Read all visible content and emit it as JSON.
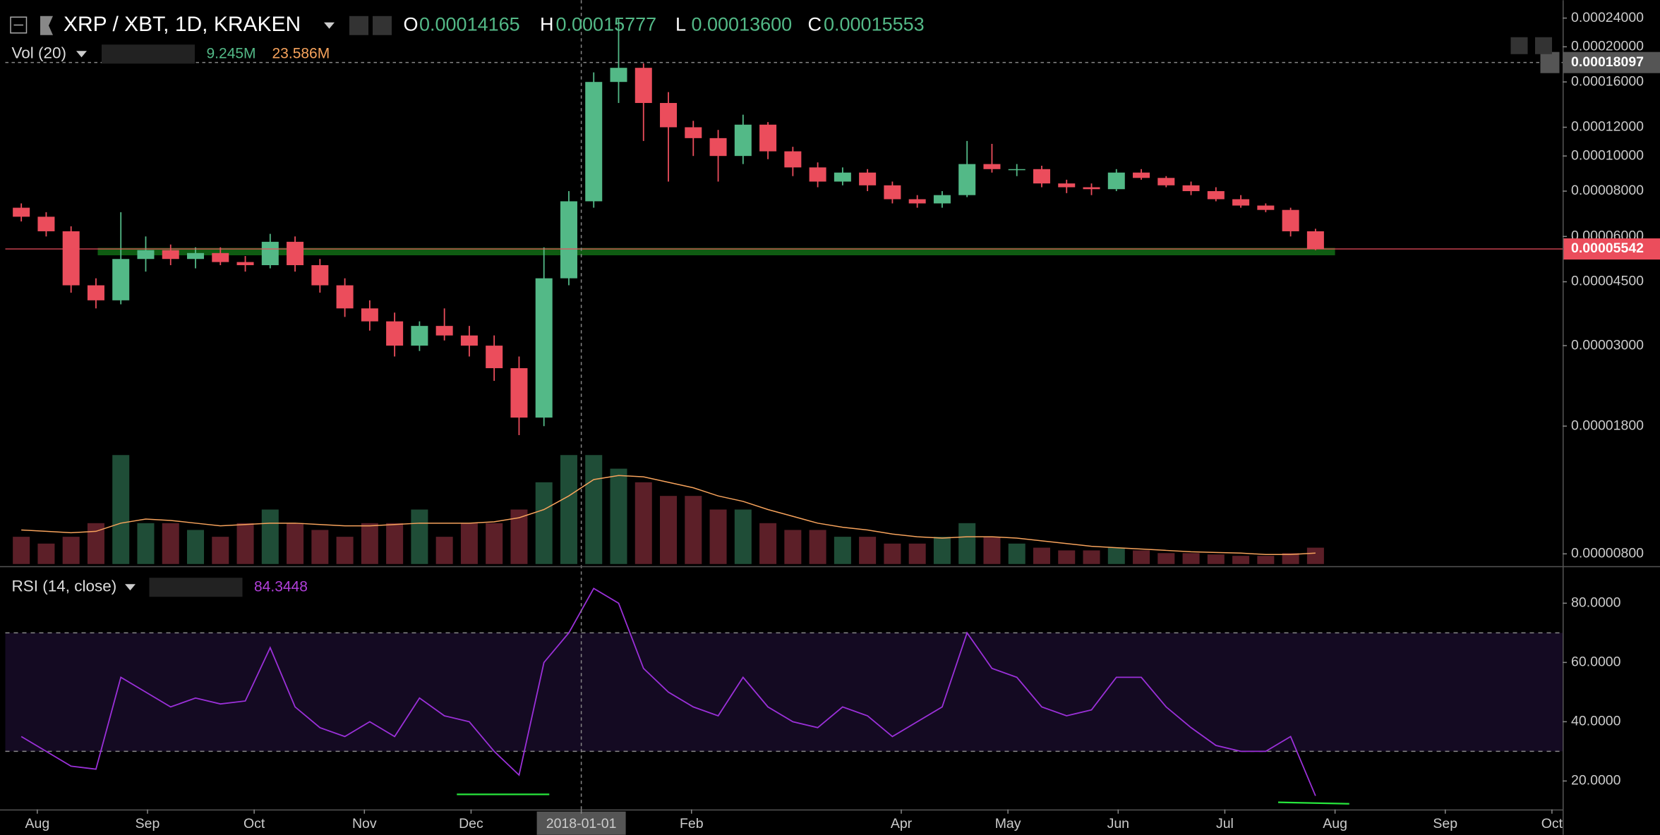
{
  "chart_data": [
    {
      "type": "candlestick",
      "title": "XRP / XBT, 1D, KRAKEN",
      "ohlc_legend": [
        {
          "label": "O",
          "value": "0.00014165"
        },
        {
          "label": "H",
          "value": "0.00015777"
        },
        {
          "label": "L",
          "value": "0.00013600"
        },
        {
          "label": "C",
          "value": "0.00015553"
        }
      ],
      "x": [
        "2017-07-24",
        "2017-07-31",
        "2017-08-07",
        "2017-08-14",
        "2017-08-21",
        "2017-08-28",
        "2017-09-04",
        "2017-09-11",
        "2017-09-18",
        "2017-09-25",
        "2017-10-02",
        "2017-10-09",
        "2017-10-16",
        "2017-10-23",
        "2017-10-30",
        "2017-11-06",
        "2017-11-13",
        "2017-11-20",
        "2017-11-27",
        "2017-12-04",
        "2017-12-11",
        "2017-12-18",
        "2017-12-25",
        "2018-01-01",
        "2018-01-08",
        "2018-01-15",
        "2018-01-22",
        "2018-01-29",
        "2018-02-05",
        "2018-02-12",
        "2018-02-19",
        "2018-02-26",
        "2018-03-05",
        "2018-03-12",
        "2018-03-19",
        "2018-03-26",
        "2018-04-02",
        "2018-04-09",
        "2018-04-16",
        "2018-04-23",
        "2018-04-30",
        "2018-05-07",
        "2018-05-14",
        "2018-05-21",
        "2018-05-28",
        "2018-06-04",
        "2018-06-11",
        "2018-06-18",
        "2018-06-25",
        "2018-07-02",
        "2018-07-09",
        "2018-07-16",
        "2018-07-23"
      ],
      "open": [
        7.2e-05,
        6.8e-05,
        6.2e-05,
        4.4e-05,
        4e-05,
        5.2e-05,
        5.5e-05,
        5.2e-05,
        5.4e-05,
        5.1e-05,
        5e-05,
        5.8e-05,
        5e-05,
        4.4e-05,
        3.8e-05,
        3.5e-05,
        3e-05,
        3.4e-05,
        3.2e-05,
        3e-05,
        2.6e-05,
        1.9e-05,
        4.6e-05,
        7.5e-05,
        0.00016,
        0.000175,
        0.00014,
        0.00012,
        0.000112,
        0.0001,
        0.000122,
        0.000103,
        9.3e-05,
        8.5e-05,
        9e-05,
        8.3e-05,
        7.6e-05,
        7.4e-05,
        7.8e-05,
        9.5e-05,
        9.2e-05,
        9.2e-05,
        8.4e-05,
        8.2e-05,
        8.1e-05,
        9e-05,
        8.7e-05,
        8.3e-05,
        8e-05,
        7.6e-05,
        7.3e-05,
        7.1e-05,
        6.2e-05
      ],
      "high": [
        7.4e-05,
        7e-05,
        6.4e-05,
        4.6e-05,
        7e-05,
        6e-05,
        5.7e-05,
        5.6e-05,
        5.6e-05,
        5.3e-05,
        6.1e-05,
        6e-05,
        5.2e-05,
        4.6e-05,
        4e-05,
        3.7e-05,
        3.5e-05,
        3.8e-05,
        3.4e-05,
        3.2e-05,
        2.8e-05,
        5.6e-05,
        8e-05,
        0.00017,
        0.00024,
        0.00018,
        0.00015,
        0.000125,
        0.000118,
        0.00013,
        0.000124,
        0.000106,
        9.6e-05,
        9.3e-05,
        9.2e-05,
        8.5e-05,
        7.8e-05,
        8e-05,
        0.00011,
        0.000108,
        9.5e-05,
        9.4e-05,
        8.6e-05,
        8.4e-05,
        9.2e-05,
        9.2e-05,
        8.8e-05,
        8.5e-05,
        8.2e-05,
        7.8e-05,
        7.4e-05,
        7.2e-05,
        6.3e-05
      ],
      "low": [
        6.6e-05,
        6e-05,
        4.2e-05,
        3.8e-05,
        3.9e-05,
        4.8e-05,
        5e-05,
        4.9e-05,
        5e-05,
        4.8e-05,
        4.9e-05,
        4.8e-05,
        4.2e-05,
        3.6e-05,
        3.3e-05,
        2.8e-05,
        2.9e-05,
        3.1e-05,
        2.8e-05,
        2.4e-05,
        1.7e-05,
        1.8e-05,
        4.4e-05,
        7.2e-05,
        0.00014,
        0.00011,
        8.5e-05,
        0.0001,
        8.5e-05,
        9.5e-05,
        9.8e-05,
        8.8e-05,
        8.2e-05,
        8.3e-05,
        8e-05,
        7.4e-05,
        7.2e-05,
        7.2e-05,
        7.7e-05,
        9e-05,
        8.8e-05,
        8.2e-05,
        7.9e-05,
        7.8e-05,
        8e-05,
        8.6e-05,
        8.2e-05,
        7.8e-05,
        7.5e-05,
        7.2e-05,
        7e-05,
        6e-05,
        5.5e-05
      ],
      "close": [
        6.8e-05,
        6.2e-05,
        4.4e-05,
        4e-05,
        5.2e-05,
        5.5e-05,
        5.2e-05,
        5.4e-05,
        5.1e-05,
        5e-05,
        5.8e-05,
        5e-05,
        4.4e-05,
        3.8e-05,
        3.5e-05,
        3e-05,
        3.4e-05,
        3.2e-05,
        3e-05,
        2.6e-05,
        1.9e-05,
        4.6e-05,
        7.5e-05,
        0.00016,
        0.000175,
        0.00014,
        0.00012,
        0.000112,
        0.0001,
        0.000122,
        0.000103,
        9.3e-05,
        8.5e-05,
        9e-05,
        8.3e-05,
        7.6e-05,
        7.4e-05,
        7.8e-05,
        9.5e-05,
        9.2e-05,
        9.2e-05,
        8.4e-05,
        8.2e-05,
        8.1e-05,
        9e-05,
        8.7e-05,
        8.3e-05,
        8e-05,
        7.6e-05,
        7.3e-05,
        7.1e-05,
        6.2e-05,
        5.542e-05
      ],
      "up_color": "#53b987",
      "down_color": "#eb4d5c",
      "xlim": [
        "2017-07-23",
        "2018-10-04"
      ],
      "xticks": [
        {
          "value": "2017-08-01",
          "label": "Aug"
        },
        {
          "value": "2017-09-01",
          "label": "Sep"
        },
        {
          "value": "2017-10-01",
          "label": "Oct"
        },
        {
          "value": "2017-11-01",
          "label": "Nov"
        },
        {
          "value": "2017-12-01",
          "label": "Dec"
        },
        "2018-01-01",
        {
          "value": "2018-02-01",
          "label": "Feb"
        },
        {
          "value": "2018-04-01",
          "label": "Apr"
        },
        {
          "value": "2018-05-01",
          "label": "May"
        },
        {
          "value": "2018-06-01",
          "label": "Jun"
        },
        {
          "value": "2018-07-01",
          "label": "Jul"
        },
        {
          "value": "2018-08-01",
          "label": "Aug"
        },
        {
          "value": "2018-09-01",
          "label": "Sep"
        },
        {
          "value": "2018-10-01",
          "label": "Oct"
        }
      ],
      "ylim": [
        7.5e-06,
        0.00026
      ],
      "log_scale": true,
      "yticks": [
        {
          "value": 0.00024,
          "label": "0.00024000"
        },
        {
          "value": 0.0002,
          "label": "0.00020000"
        },
        {
          "value": 0.00016,
          "label": "0.00016000"
        },
        {
          "value": 0.00012,
          "label": "0.00012000"
        },
        {
          "value": 0.0001,
          "label": "0.00010000"
        },
        {
          "value": 8e-05,
          "label": "0.00008000"
        },
        {
          "value": 6e-05,
          "label": "0.00006000"
        },
        {
          "value": 4.5e-05,
          "label": "0.00004500"
        },
        {
          "value": 3e-05,
          "label": "0.00003000"
        },
        {
          "value": 1.8e-05,
          "label": "0.00001800"
        },
        {
          "value": 8e-06,
          "label": "0.00000800"
        }
      ],
      "last_price": 5.542e-05,
      "last_price_color": "#eb4d5c",
      "crosshair": {
        "x": "2018-01-01",
        "y": 0.00018097
      },
      "support_line": {
        "x": [
          "2017-08-18",
          "2018-08-01"
        ],
        "y": 5.45e-05,
        "color": "#0f5c12"
      }
    },
    {
      "type": "bar",
      "title": "Vol (20)",
      "legend_values": [
        "9.245M",
        "23.586M"
      ],
      "values": [
        2,
        1.5,
        2,
        3,
        8,
        3,
        3,
        2.5,
        2,
        3,
        4,
        3,
        2.5,
        2,
        3,
        3,
        4,
        2,
        3,
        3,
        4,
        6,
        8,
        8,
        7,
        6,
        5,
        5,
        4,
        4,
        3,
        2.5,
        2.5,
        2,
        2,
        1.5,
        1.5,
        2,
        3,
        2,
        1.5,
        1.2,
        1,
        1,
        1.2,
        1,
        0.8,
        0.8,
        0.7,
        0.6,
        0.6,
        0.8,
        1.2
      ],
      "ma": [
        2.5,
        2.4,
        2.3,
        2.4,
        3,
        3.3,
        3.2,
        3,
        2.8,
        2.9,
        3,
        3,
        2.9,
        2.8,
        2.8,
        2.9,
        3,
        3,
        3,
        3.1,
        3.4,
        4,
        5,
        6.2,
        6.5,
        6.4,
        6,
        5.6,
        5,
        4.6,
        4,
        3.5,
        3,
        2.7,
        2.5,
        2.2,
        2,
        1.9,
        2,
        2,
        1.9,
        1.7,
        1.5,
        1.3,
        1.2,
        1.1,
        1,
        0.9,
        0.85,
        0.8,
        0.7,
        0.7,
        0.8
      ],
      "up_color": "#1f4d37",
      "down_color": "#5c1f28",
      "ma_color": "#f7a35c"
    },
    {
      "type": "line",
      "title": "RSI (14, close)",
      "legend_value": "84.3448",
      "color": "#9b30d9",
      "values": [
        35,
        30,
        25,
        24,
        55,
        50,
        45,
        48,
        46,
        47,
        65,
        45,
        38,
        35,
        40,
        35,
        48,
        42,
        40,
        30,
        22,
        60,
        70,
        85,
        80,
        58,
        50,
        45,
        42,
        55,
        45,
        40,
        38,
        45,
        42,
        35,
        40,
        45,
        70,
        58,
        55,
        45,
        42,
        44,
        55,
        55,
        45,
        38,
        32,
        30,
        30,
        35,
        15
      ],
      "ylim": [
        10.4,
        91.8
      ],
      "yticks": [
        {
          "value": 80,
          "label": "80.0000"
        },
        {
          "value": 60,
          "label": "60.0000"
        },
        {
          "value": 40,
          "label": "40.0000"
        },
        {
          "value": 20,
          "label": "20.0000"
        }
      ],
      "bands": [
        30,
        70
      ],
      "band_color": "#140a22",
      "annotations": [
        {
          "x": [
            "2017-11-27",
            "2017-12-23"
          ],
          "y": [
            15.5,
            15.5
          ]
        },
        {
          "x": [
            "2018-07-16",
            "2018-08-05"
          ],
          "y": [
            12.8,
            12.3
          ]
        }
      ],
      "annotation_color": "#27e63c"
    }
  ]
}
